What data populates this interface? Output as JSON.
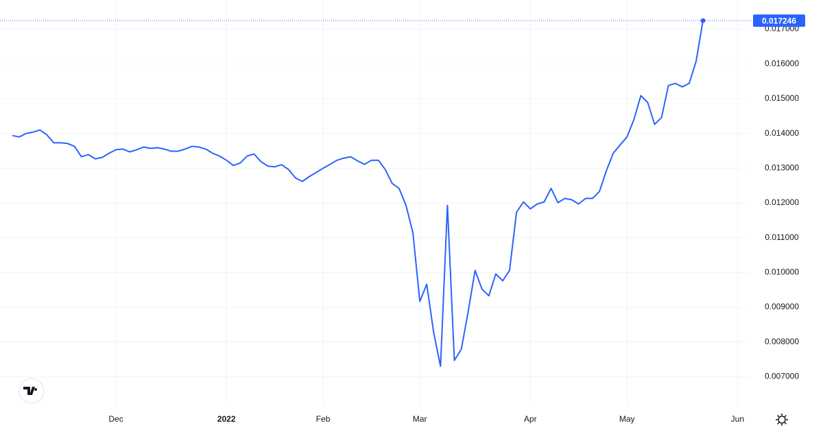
{
  "chart_data": {
    "type": "line",
    "categories": [
      null,
      null,
      null,
      null,
      null,
      null,
      null,
      null,
      null,
      null,
      null,
      null,
      null,
      null,
      null,
      "Dec",
      null,
      null,
      null,
      null,
      null,
      null,
      null,
      null,
      null,
      null,
      null,
      null,
      null,
      null,
      null,
      "2022",
      null,
      null,
      null,
      null,
      null,
      null,
      null,
      null,
      null,
      null,
      null,
      null,
      null,
      "Feb",
      null,
      null,
      null,
      null,
      null,
      null,
      null,
      null,
      null,
      null,
      null,
      null,
      null,
      "Mar",
      null,
      null,
      null,
      null,
      null,
      null,
      null,
      null,
      null,
      null,
      null,
      null,
      null,
      null,
      null,
      "Apr",
      null,
      null,
      null,
      null,
      null,
      null,
      null,
      null,
      null,
      null,
      null,
      null,
      null,
      "May",
      null,
      null,
      null,
      null,
      null,
      null,
      null,
      null,
      null,
      null,
      null,
      null,
      null,
      null,
      null,
      "Jun",
      null
    ],
    "series": [
      {
        "color": "#2962ff",
        "values": [
          0.01394,
          0.0139,
          0.014,
          0.01404,
          0.0141,
          0.01396,
          0.01373,
          0.01373,
          0.01371,
          0.01363,
          0.01333,
          0.01339,
          0.01327,
          0.01331,
          0.01343,
          0.01353,
          0.01355,
          0.01347,
          0.01353,
          0.01361,
          0.01357,
          0.01359,
          0.01355,
          0.01349,
          0.01349,
          0.01355,
          0.01363,
          0.01361,
          0.01355,
          0.01343,
          0.01335,
          0.01323,
          0.01308,
          0.01315,
          0.01335,
          0.01341,
          0.01319,
          0.01306,
          0.01304,
          0.0131,
          0.01296,
          0.01272,
          0.01262,
          0.01276,
          0.01288,
          0.013,
          0.01311,
          0.01323,
          0.01329,
          0.01333,
          0.01321,
          0.01311,
          0.01323,
          0.01323,
          0.01296,
          0.01256,
          0.01242,
          0.01193,
          0.01114,
          0.00917,
          0.00966,
          0.00828,
          0.0073,
          0.01193,
          0.00747,
          0.00779,
          0.00887,
          0.01006,
          0.00952,
          0.00933,
          0.00996,
          0.00976,
          0.01006,
          0.01173,
          0.01203,
          0.01183,
          0.01197,
          0.01203,
          0.01242,
          0.01201,
          0.01213,
          0.01209,
          0.01197,
          0.01213,
          0.01213,
          0.01233,
          0.01292,
          0.01343,
          0.01367,
          0.0139,
          0.0144,
          0.01509,
          0.01489,
          0.01426,
          0.01446,
          0.01538,
          0.01544,
          0.01534,
          0.01544,
          0.01607,
          0.017246,
          null,
          null,
          null,
          null,
          null,
          null
        ]
      }
    ],
    "ylim": [
      0.0062,
      0.0178
    ],
    "yticks": [
      {
        "value": 0.007,
        "label": "0.007000"
      },
      {
        "value": 0.008,
        "label": "0.008000"
      },
      {
        "value": 0.009,
        "label": "0.009000"
      },
      {
        "value": 0.01,
        "label": "0.010000"
      },
      {
        "value": 0.011,
        "label": "0.011000"
      },
      {
        "value": 0.012,
        "label": "0.012000"
      },
      {
        "value": 0.013,
        "label": "0.013000"
      },
      {
        "value": 0.014,
        "label": "0.014000"
      },
      {
        "value": 0.015,
        "label": "0.015000"
      },
      {
        "value": 0.016,
        "label": "0.016000"
      },
      {
        "value": 0.017,
        "label": "0.017000"
      }
    ],
    "grid": true
  }
}
